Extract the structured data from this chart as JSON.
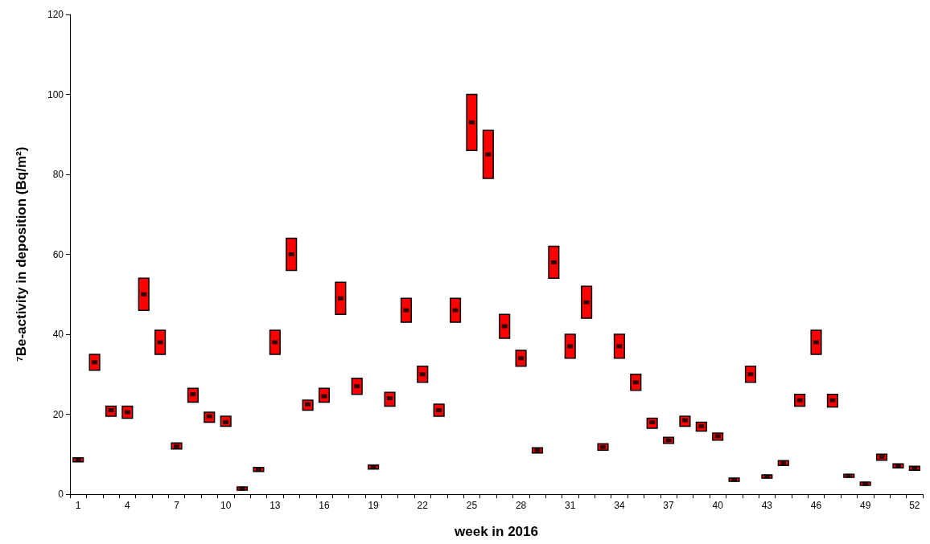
{
  "chart_data": {
    "type": "bar",
    "xlabel": "week in 2016",
    "ylabel": "⁷Be-activity in deposition (Bq/m²)",
    "categories": [
      "1",
      null,
      null,
      "4",
      null,
      null,
      "7",
      null,
      null,
      "10",
      null,
      null,
      "13",
      null,
      null,
      "16",
      null,
      null,
      "19",
      null,
      null,
      "22",
      null,
      null,
      "25",
      null,
      null,
      "28",
      null,
      null,
      "31",
      null,
      null,
      "34",
      null,
      null,
      "37",
      null,
      null,
      "40",
      null,
      null,
      "43",
      null,
      null,
      "46",
      null,
      null,
      "49",
      null,
      null,
      "52"
    ],
    "ylim": [
      0,
      120
    ],
    "yticks": [
      0,
      20,
      40,
      60,
      80,
      100,
      120
    ],
    "grid": false,
    "series": [
      {
        "color": "#ff0000",
        "base": [
          8.1,
          31,
          19.5,
          19,
          46,
          35,
          11.3,
          23,
          18,
          17,
          1,
          5.7,
          35,
          56,
          21,
          23,
          45,
          25,
          6.3,
          22,
          43,
          28,
          19.5,
          43,
          86,
          79,
          39,
          32,
          10.3,
          54,
          34,
          44,
          11,
          34,
          26,
          16.5,
          12.7,
          17,
          15.8,
          13.5,
          3.2,
          28,
          4,
          7.2,
          22,
          35,
          21.8,
          4.2,
          2.2,
          8.5,
          6.6,
          6
        ],
        "values": [
          1,
          4,
          2.5,
          3,
          8,
          6,
          1.5,
          3.5,
          2.5,
          2.5,
          0.8,
          1,
          6,
          8,
          2.5,
          3.5,
          8,
          4,
          1,
          3.5,
          6,
          4,
          3,
          6,
          14,
          12,
          6,
          4,
          1.3,
          8,
          6,
          8,
          1.6,
          6,
          4,
          2.5,
          1.5,
          2.5,
          2.2,
          1.8,
          0.8,
          4,
          0.8,
          1.2,
          3,
          6,
          3.2,
          0.8,
          0.8,
          1.5,
          1,
          1
        ]
      },
      {
        "type": "scatter",
        "color": "#000000",
        "marker": "square",
        "values": [
          8.6,
          33,
          21,
          20.5,
          50,
          38,
          12,
          25,
          19.5,
          18,
          1.4,
          6.2,
          38,
          60,
          22.5,
          24.5,
          49,
          27,
          6.8,
          24,
          46,
          30,
          21,
          46,
          93,
          85,
          42,
          34,
          11,
          58,
          37,
          48,
          11.8,
          37,
          28,
          18,
          13.5,
          18.5,
          17,
          14.5,
          3.6,
          30,
          4.4,
          7.8,
          23.5,
          38,
          23.5,
          4.6,
          2.6,
          9.3,
          7.1,
          6.5
        ]
      }
    ]
  }
}
